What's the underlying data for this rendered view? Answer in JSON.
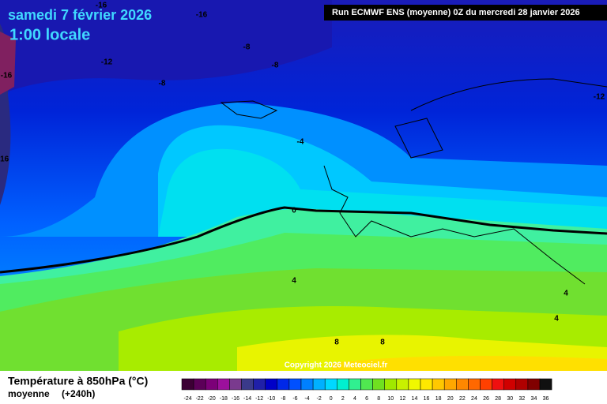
{
  "header": {
    "date": "samedi 7 février 2026",
    "time": "1:00 locale",
    "run": "Run ECMWF ENS (moyenne) 0Z du mercredi 28 janvier 2026"
  },
  "contour_labels": [
    "-16",
    "-16",
    "-12",
    "-16",
    "-16",
    "-8",
    "-8",
    "-8",
    "-12",
    "-4",
    "0",
    "4",
    "4",
    "4",
    "8",
    "8"
  ],
  "copyright": "Copyright 2026 Meteociel.fr",
  "legend": {
    "title": "Température à 850hPa (°C)",
    "subtitle": "moyenne",
    "lead": "(+240h)",
    "ticks": [
      -24,
      -22,
      -20,
      -18,
      -16,
      -14,
      -12,
      -10,
      -8,
      -6,
      -4,
      -2,
      0,
      2,
      4,
      6,
      8,
      10,
      12,
      14,
      16,
      18,
      20,
      22,
      24,
      26,
      28,
      30,
      32,
      34,
      36
    ],
    "colors": [
      "#3c0034",
      "#5c0058",
      "#7c0078",
      "#9c109c",
      "#7a3a8e",
      "#3a3a8a",
      "#2020a8",
      "#0000c8",
      "#0028e8",
      "#0050ff",
      "#0080ff",
      "#00b0ff",
      "#00d8ff",
      "#00f0d0",
      "#30f090",
      "#50e850",
      "#70e020",
      "#a0e800",
      "#c8f000",
      "#f0f800",
      "#ffe800",
      "#ffc800",
      "#ffa800",
      "#ff8800",
      "#ff6800",
      "#ff4000",
      "#f01010",
      "#d00000",
      "#b00000",
      "#800000",
      "#101010"
    ]
  }
}
